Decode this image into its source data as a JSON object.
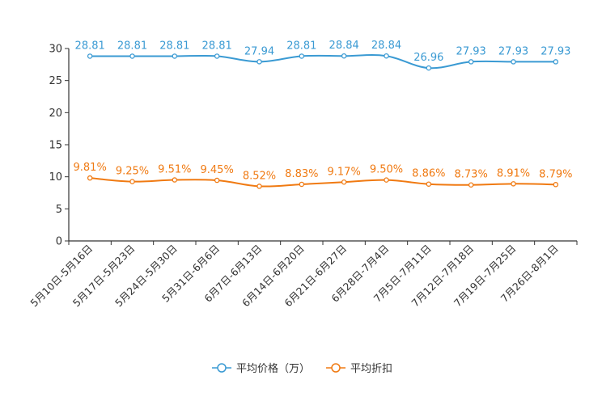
{
  "chart_data": {
    "type": "line",
    "title": "",
    "xlabel": "",
    "ylabel": "",
    "ylim": [
      0,
      30
    ],
    "yticks": [
      0,
      5,
      10,
      15,
      20,
      25,
      30
    ],
    "grid": false,
    "legend_position": "bottom-center",
    "categories": [
      "5月10日-5月16日",
      "5月17日-5月23日",
      "5月24日-5月30日",
      "5月31日-6月6日",
      "6月7日-6月13日",
      "6月14日-6月20日",
      "6月21日-6月27日",
      "6月28日-7月4日",
      "7月5日-7月11日",
      "7月12日-7月18日",
      "7月19日-7月25日",
      "7月26日-8月1日"
    ],
    "series": [
      {
        "name": "平均价格（万）",
        "color": "#3a9ad3",
        "values": [
          28.81,
          28.81,
          28.81,
          28.81,
          27.94,
          28.81,
          28.84,
          28.84,
          26.96,
          27.93,
          27.93,
          27.93
        ],
        "labels": [
          "28.81",
          "28.81",
          "28.81",
          "28.81",
          "27.94",
          "28.81",
          "28.84",
          "28.84",
          "26.96",
          "27.93",
          "27.93",
          "27.93"
        ]
      },
      {
        "name": "平均折扣",
        "color": "#f07a12",
        "values": [
          9.81,
          9.25,
          9.51,
          9.45,
          8.52,
          8.83,
          9.17,
          9.5,
          8.86,
          8.73,
          8.91,
          8.79
        ],
        "labels": [
          "9.81%",
          "9.25%",
          "9.51%",
          "9.45%",
          "8.52%",
          "8.83%",
          "9.17%",
          "9.50%",
          "8.86%",
          "8.73%",
          "8.91%",
          "8.79%"
        ]
      }
    ]
  }
}
